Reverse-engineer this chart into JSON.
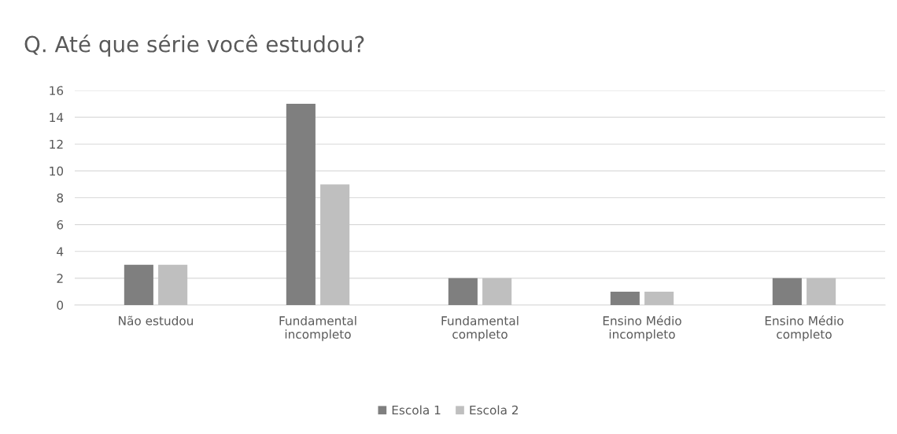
{
  "chart_data": {
    "type": "bar",
    "title": "Q. Até que série você estudou?",
    "categories": [
      "Não estudou",
      "Fundamental\nincompleto",
      "Fundamental\ncompleto",
      "Ensino Médio\nincompleto",
      "Ensino Médio\ncompleto"
    ],
    "series": [
      {
        "name": "Escola 1",
        "color": "#7f7f7f",
        "values": [
          3,
          15,
          2,
          1,
          2
        ]
      },
      {
        "name": "Escola 2",
        "color": "#bfbfbf",
        "values": [
          3,
          9,
          2,
          1,
          2
        ]
      }
    ],
    "ylim": [
      0,
      16
    ],
    "yticks": [
      0,
      2,
      4,
      6,
      8,
      10,
      12,
      14,
      16
    ],
    "grid": "y",
    "legend": "bottom"
  }
}
